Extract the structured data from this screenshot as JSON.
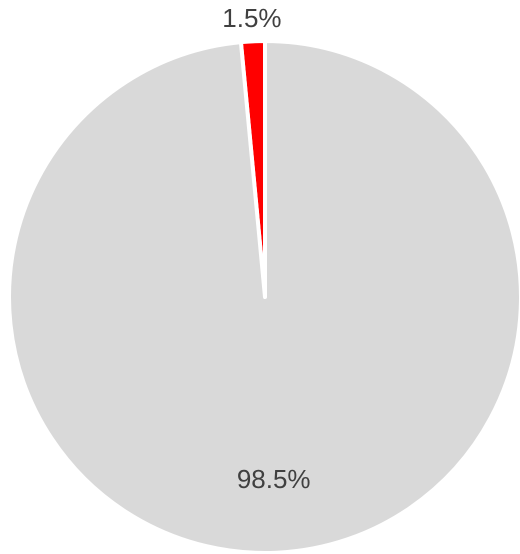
{
  "chart_data": {
    "type": "pie",
    "slices": [
      {
        "label": "1.5%",
        "value": 1.5,
        "color": "#ff0000"
      },
      {
        "label": "98.5%",
        "value": 98.5,
        "color": "#d9d9d9"
      }
    ],
    "start_angle_deg": 0,
    "direction": "clockwise",
    "separator_color": "#ffffff",
    "label_color": "#404040",
    "legend": "none"
  }
}
